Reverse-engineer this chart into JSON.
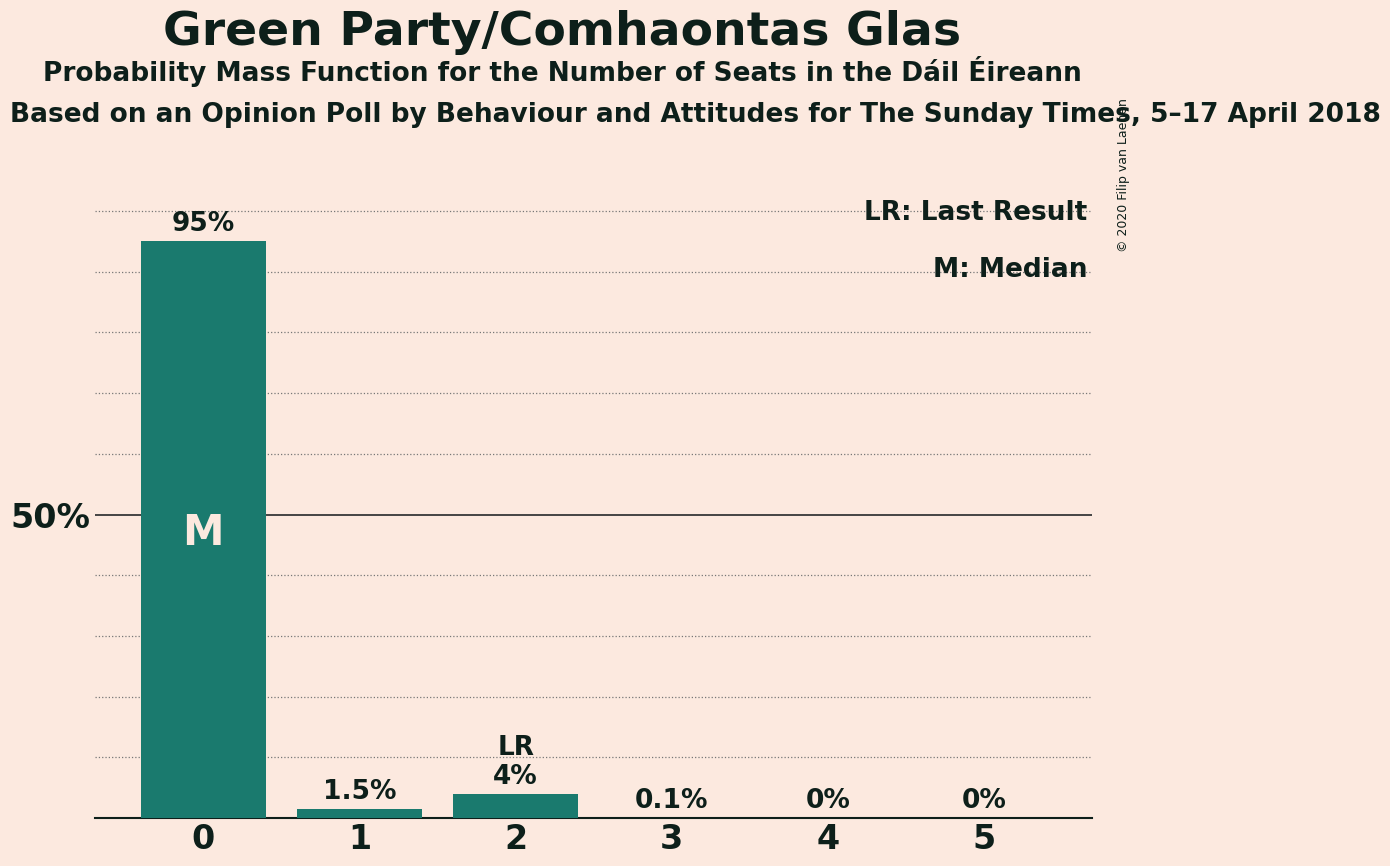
{
  "title": "Green Party/Comhaontas Glas",
  "subtitle": "Probability Mass Function for the Number of Seats in the Dáil Éireann",
  "source_line": "Based on an Opinion Poll by Behaviour and Attitudes for The Sunday Times, 5–17 April 2018",
  "copyright": "© 2020 Filip van Laenen",
  "categories": [
    0,
    1,
    2,
    3,
    4,
    5
  ],
  "values": [
    0.95,
    0.015,
    0.04,
    0.001,
    0.0,
    0.0
  ],
  "bar_color": "#1a7a6e",
  "background_color": "#fce9df",
  "label_50pct": "50%",
  "bar_labels": [
    "95%",
    "1.5%",
    "4%",
    "0.1%",
    "0%",
    "0%"
  ],
  "median_label": "M",
  "lr_label": "LR",
  "lr_bar_index": 2,
  "median_bar_index": 0,
  "legend_lr": "LR: Last Result",
  "legend_m": "M: Median",
  "ytick_50_value": 0.5,
  "grid_yticks": [
    0.1,
    0.2,
    0.3,
    0.4,
    0.5,
    0.6,
    0.7,
    0.8,
    0.9,
    1.0
  ],
  "ylim": [
    0,
    1.05
  ],
  "bar_text_color": "#fce9df",
  "text_color": "#0d1f1a",
  "title_fontsize": 34,
  "subtitle_fontsize": 19,
  "source_fontsize": 19,
  "label_fontsize": 19,
  "tick_fontsize": 24,
  "legend_fontsize": 19,
  "median_fontsize": 30,
  "copyright_fontsize": 9
}
